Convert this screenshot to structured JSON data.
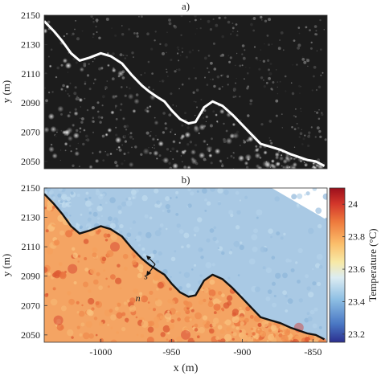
{
  "chart_data": [
    {
      "type": "heatmap",
      "panel_label": "a)",
      "xlabel": "",
      "ylabel": "y (m)",
      "ylim": [
        2045,
        2150
      ],
      "xlim": [
        -1040,
        -840
      ],
      "yticks": [
        2050,
        2070,
        2090,
        2110,
        2130,
        2150
      ],
      "xticks": [],
      "colormap": "grayscale",
      "background_color": "#1c1c1c",
      "line_color": "#ffffff",
      "front_line": {
        "x": [
          -1040,
          -1033,
          -1027,
          -1021,
          -1015,
          -1008,
          -1000,
          -993,
          -985,
          -978,
          -971,
          -966,
          -960,
          -955,
          -950,
          -944,
          -938,
          -933,
          -927,
          -921,
          -914,
          -907,
          -900,
          -893,
          -887,
          -880,
          -873,
          -866,
          -860,
          -854,
          -848,
          -842
        ],
        "y": [
          2146,
          2139,
          2132,
          2124,
          2119,
          2121,
          2124,
          2122,
          2117,
          2109,
          2102,
          2098,
          2094,
          2091,
          2085,
          2079,
          2076,
          2077,
          2087,
          2091,
          2088,
          2082,
          2075,
          2068,
          2062,
          2060,
          2058,
          2055,
          2053,
          2051,
          2050,
          2047
        ]
      }
    },
    {
      "type": "heatmap",
      "panel_label": "b)",
      "xlabel": "x (m)",
      "ylabel": "y (m)",
      "ylim": [
        2045,
        2150
      ],
      "xlim": [
        -1040,
        -840
      ],
      "yticks": [
        2050,
        2070,
        2090,
        2110,
        2130,
        2150
      ],
      "xticks": [
        -1000,
        -950,
        -900,
        -850
      ],
      "colormap": "blue-yellow-red",
      "line_color": "#111111",
      "colorbar": {
        "label": "Temperature (°C)",
        "range": [
          23.15,
          24.1
        ],
        "ticks": [
          23.2,
          23.4,
          23.6,
          23.8,
          24
        ]
      },
      "cold_side_temperature": 23.3,
      "warm_side_temperature": 23.85,
      "front_line": {
        "x": [
          -1040,
          -1033,
          -1027,
          -1021,
          -1015,
          -1008,
          -1000,
          -993,
          -985,
          -978,
          -971,
          -966,
          -960,
          -955,
          -950,
          -944,
          -938,
          -933,
          -927,
          -921,
          -914,
          -907,
          -900,
          -893,
          -887,
          -880,
          -873,
          -866,
          -860,
          -854,
          -848,
          -842
        ],
        "y": [
          2146,
          2139,
          2132,
          2124,
          2119,
          2121,
          2124,
          2122,
          2117,
          2109,
          2102,
          2098,
          2094,
          2091,
          2085,
          2079,
          2076,
          2077,
          2087,
          2091,
          2088,
          2082,
          2075,
          2068,
          2062,
          2060,
          2058,
          2055,
          2053,
          2051,
          2050,
          2047
        ]
      },
      "annotations": [
        {
          "text": "s",
          "x": -966,
          "y": 2090
        },
        {
          "text": "n",
          "x": -972,
          "y": 2075
        }
      ]
    }
  ]
}
